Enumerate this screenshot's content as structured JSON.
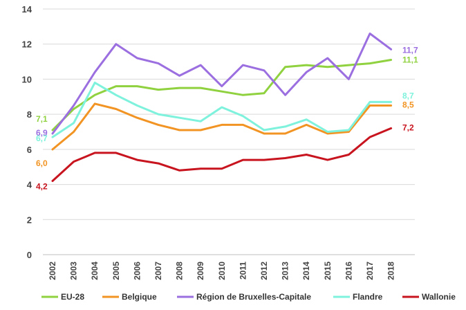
{
  "chart_data": {
    "type": "line",
    "title": "",
    "xlabel": "",
    "ylabel": "",
    "ylim": [
      0,
      14
    ],
    "yticks": [
      "0",
      "2",
      "4",
      "6",
      "8",
      "10",
      "12",
      "14"
    ],
    "grid": "horizontal",
    "legend_position": "bottom",
    "categories": [
      "2002",
      "2003",
      "2004",
      "2005",
      "2006",
      "2007",
      "2008",
      "2009",
      "2010",
      "2011",
      "2012",
      "2013",
      "2014",
      "2015",
      "2016",
      "2017",
      "2018"
    ],
    "series": [
      {
        "name": "EU-28",
        "color": "#8fd13f",
        "values": [
          7.1,
          8.3,
          9.1,
          9.6,
          9.6,
          9.4,
          9.5,
          9.5,
          9.3,
          9.1,
          9.2,
          10.7,
          10.8,
          10.7,
          10.8,
          10.9,
          11.1
        ],
        "start_label": "7,1",
        "end_label": "11,1"
      },
      {
        "name": "Belgique",
        "color": "#f29423",
        "values": [
          6.0,
          7.0,
          8.6,
          8.3,
          7.8,
          7.4,
          7.1,
          7.1,
          7.4,
          7.4,
          6.9,
          6.9,
          7.4,
          6.9,
          7.0,
          8.5,
          8.5
        ],
        "start_label": "6,0",
        "end_label": "8,5"
      },
      {
        "name": "Région de Bruxelles-Capitale",
        "color": "#9b6fe0",
        "values": [
          6.9,
          8.5,
          10.4,
          12.0,
          11.2,
          10.9,
          10.2,
          10.8,
          9.6,
          10.8,
          10.5,
          9.1,
          10.4,
          11.2,
          10.0,
          12.6,
          11.7
        ],
        "start_label": "6,9",
        "end_label": "11,7"
      },
      {
        "name": "Flandre",
        "color": "#7ef2dc",
        "values": [
          6.7,
          7.5,
          9.8,
          9.1,
          8.5,
          8.0,
          7.8,
          7.6,
          8.4,
          7.9,
          7.1,
          7.3,
          7.7,
          7.0,
          7.1,
          8.7,
          8.7
        ],
        "start_label": "6,7",
        "end_label": "8,7"
      },
      {
        "name": "Wallonie",
        "color": "#c8141e",
        "values": [
          4.2,
          5.3,
          5.8,
          5.8,
          5.4,
          5.2,
          4.8,
          4.9,
          4.9,
          5.4,
          5.4,
          5.5,
          5.7,
          5.4,
          5.7,
          6.7,
          7.2
        ],
        "start_label": "4,2",
        "end_label": "7,2"
      }
    ]
  }
}
